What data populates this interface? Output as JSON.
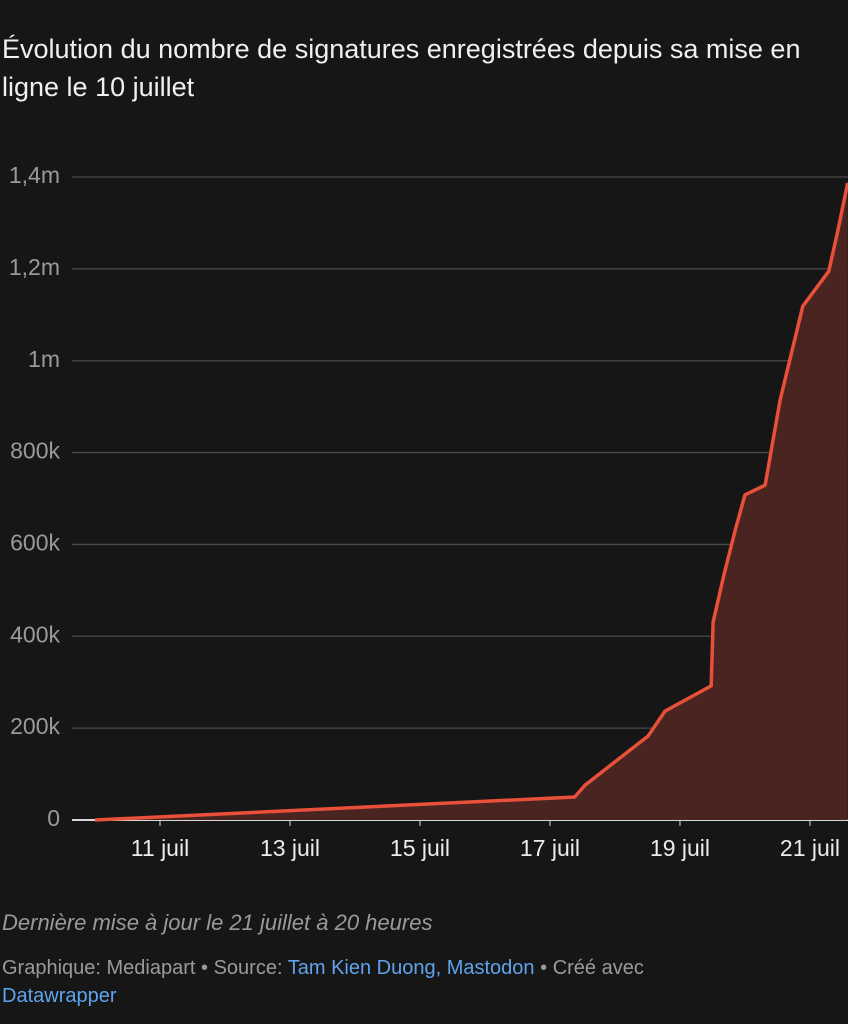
{
  "chart_data": {
    "type": "area",
    "subtitle": "Évolution du nombre de signatures enregistrées depuis sa mise en ligne le 10 juillet",
    "x": [
      10,
      17.38,
      17.54,
      18.51,
      18.77,
      19.48,
      19.51,
      19.68,
      19.85,
      20.0,
      20.31,
      20.54,
      20.89,
      21.29,
      21.43,
      21.58
    ],
    "series": [
      {
        "color": "#e8503a",
        "values": [
          0,
          50000,
          76000,
          183000,
          237000,
          292000,
          431000,
          536000,
          631000,
          708000,
          729000,
          914000,
          1119000,
          1195000,
          1284000,
          1387000
        ]
      }
    ],
    "area_color": "#4a2420",
    "xlim": [
      10,
      21.585
    ],
    "xticks": [
      {
        "value": 11,
        "label": "11 juil"
      },
      {
        "value": 13,
        "label": "13 juil"
      },
      {
        "value": 15,
        "label": "15 juil"
      },
      {
        "value": 17,
        "label": "17 juil"
      },
      {
        "value": 19,
        "label": "19 juil"
      },
      {
        "value": 21,
        "label": "21 juil"
      }
    ],
    "ylim": [
      0,
      1400000
    ],
    "yticks": [
      0,
      {
        "value": 200000,
        "label": "200k"
      },
      {
        "value": 400000,
        "label": "400k"
      },
      {
        "value": 600000,
        "label": "600k"
      },
      {
        "value": 800000,
        "label": "800k"
      },
      {
        "value": 1000000,
        "label": "1m"
      },
      {
        "value": 1200000,
        "label": "1,2m"
      },
      {
        "value": 1400000,
        "label": "1,4m"
      }
    ],
    "grid": true,
    "notes": "Dernière mise à jour le 21 juillet à 20 heures",
    "credit": {
      "graphic": "Graphique: Mediapart",
      "separator": "•",
      "source_label": "Source:",
      "source_link": "Tam Kien Duong, Mastodon",
      "made_with": "Créé avec",
      "tool_link": "Datawrapper"
    }
  }
}
